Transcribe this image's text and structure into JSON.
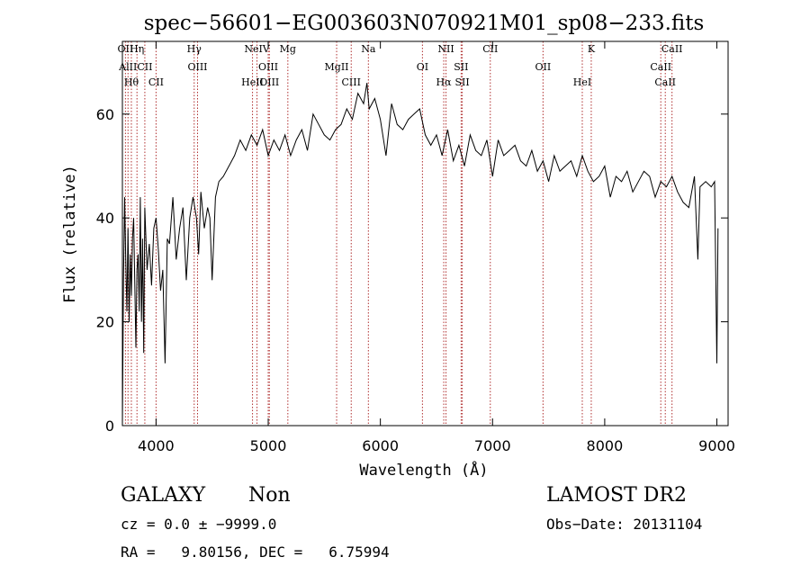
{
  "chart_data": {
    "type": "line",
    "title": "spec−56601−EG003603N070921M01_sp08−233.fits",
    "xlabel": "Wavelength (Å)",
    "ylabel": "Flux (relative)",
    "xlim": [
      3700,
      9100
    ],
    "ylim": [
      0,
      74
    ],
    "xticks": [
      4000,
      5000,
      6000,
      7000,
      8000,
      9000
    ],
    "yticks": [
      0,
      20,
      40,
      60
    ],
    "grid": false,
    "line_color": "#000000",
    "marker_color": "#b03030",
    "spectrum": {
      "x": [
        3700,
        3710,
        3720,
        3730,
        3740,
        3750,
        3760,
        3770,
        3780,
        3790,
        3800,
        3810,
        3820,
        3830,
        3840,
        3850,
        3860,
        3870,
        3880,
        3890,
        3900,
        3920,
        3940,
        3960,
        3980,
        4000,
        4020,
        4040,
        4060,
        4080,
        4100,
        4120,
        4150,
        4180,
        4210,
        4240,
        4270,
        4300,
        4330,
        4360,
        4380,
        4400,
        4430,
        4460,
        4480,
        4500,
        4530,
        4560,
        4600,
        4650,
        4700,
        4750,
        4800,
        4850,
        4900,
        4950,
        5000,
        5050,
        5100,
        5150,
        5200,
        5250,
        5300,
        5350,
        5400,
        5450,
        5500,
        5550,
        5600,
        5650,
        5700,
        5750,
        5800,
        5850,
        5880,
        5900,
        5950,
        6000,
        6050,
        6100,
        6150,
        6200,
        6250,
        6300,
        6350,
        6400,
        6450,
        6500,
        6550,
        6600,
        6650,
        6700,
        6750,
        6800,
        6850,
        6900,
        6950,
        7000,
        7050,
        7100,
        7150,
        7200,
        7250,
        7300,
        7350,
        7400,
        7450,
        7500,
        7550,
        7600,
        7650,
        7700,
        7750,
        7800,
        7850,
        7900,
        7950,
        8000,
        8050,
        8100,
        8150,
        8200,
        8250,
        8300,
        8350,
        8400,
        8450,
        8500,
        8550,
        8600,
        8650,
        8700,
        8750,
        8800,
        8830,
        8850,
        8900,
        8950,
        8980,
        9000,
        9010
      ],
      "y": [
        0,
        28,
        44,
        32,
        22,
        38,
        20,
        33,
        25,
        36,
        40,
        28,
        15,
        30,
        33,
        22,
        44,
        20,
        36,
        14,
        42,
        30,
        35,
        27,
        38,
        40,
        34,
        26,
        30,
        12,
        36,
        35,
        44,
        32,
        38,
        42,
        28,
        40,
        44,
        40,
        33,
        45,
        38,
        42,
        40,
        28,
        44,
        47,
        48,
        50,
        52,
        55,
        53,
        56,
        54,
        57,
        52,
        55,
        53,
        56,
        52,
        55,
        57,
        53,
        60,
        58,
        56,
        55,
        57,
        58,
        61,
        59,
        64,
        62,
        66,
        61,
        63,
        59,
        52,
        62,
        58,
        57,
        59,
        60,
        61,
        56,
        54,
        56,
        52,
        57,
        51,
        54,
        50,
        56,
        53,
        52,
        55,
        48,
        55,
        52,
        53,
        54,
        51,
        50,
        53,
        49,
        51,
        47,
        52,
        49,
        50,
        51,
        48,
        52,
        49,
        47,
        48,
        50,
        44,
        48,
        47,
        49,
        45,
        47,
        49,
        48,
        44,
        47,
        46,
        48,
        45,
        43,
        42,
        48,
        32,
        46,
        47,
        46,
        47,
        12,
        38
      ]
    },
    "line_markers": [
      {
        "x": 3727,
        "label": "OII"
      },
      {
        "x": 3750,
        "label": "AlII"
      },
      {
        "x": 3780,
        "label": "Hθ"
      },
      {
        "x": 3830,
        "label": "Hη"
      },
      {
        "x": 3900,
        "label": "CII"
      },
      {
        "x": 4000,
        "label": "CII"
      },
      {
        "x": 4340,
        "label": "Hγ"
      },
      {
        "x": 4370,
        "label": "OIII"
      },
      {
        "x": 4860,
        "label": "HeII"
      },
      {
        "x": 4900,
        "label": "NeIV"
      },
      {
        "x": 5000,
        "label": "OIII"
      },
      {
        "x": 5010,
        "label": "OIII"
      },
      {
        "x": 5175,
        "label": "Mg"
      },
      {
        "x": 5610,
        "label": "MgII"
      },
      {
        "x": 5740,
        "label": "CIII"
      },
      {
        "x": 5893,
        "label": "Na"
      },
      {
        "x": 6375,
        "label": "OI"
      },
      {
        "x": 6565,
        "label": "Hα"
      },
      {
        "x": 6585,
        "label": "NII"
      },
      {
        "x": 6720,
        "label": "SII"
      },
      {
        "x": 6730,
        "label": "SII"
      },
      {
        "x": 6980,
        "label": "CII"
      },
      {
        "x": 7450,
        "label": "OII"
      },
      {
        "x": 7800,
        "label": "HeI"
      },
      {
        "x": 7880,
        "label": "K"
      },
      {
        "x": 8500,
        "label": "CaII"
      },
      {
        "x": 8540,
        "label": "CaII"
      },
      {
        "x": 8600,
        "label": "CaII"
      }
    ]
  },
  "info": {
    "object_class": "GALAXY",
    "subclass": "Non",
    "cz": "cz = 0.0 ± −9999.0",
    "coords": "RA =   9.80156, DEC =   6.75994",
    "survey": "LAMOST DR2",
    "obs_date": "Obs−Date: 20131104"
  }
}
